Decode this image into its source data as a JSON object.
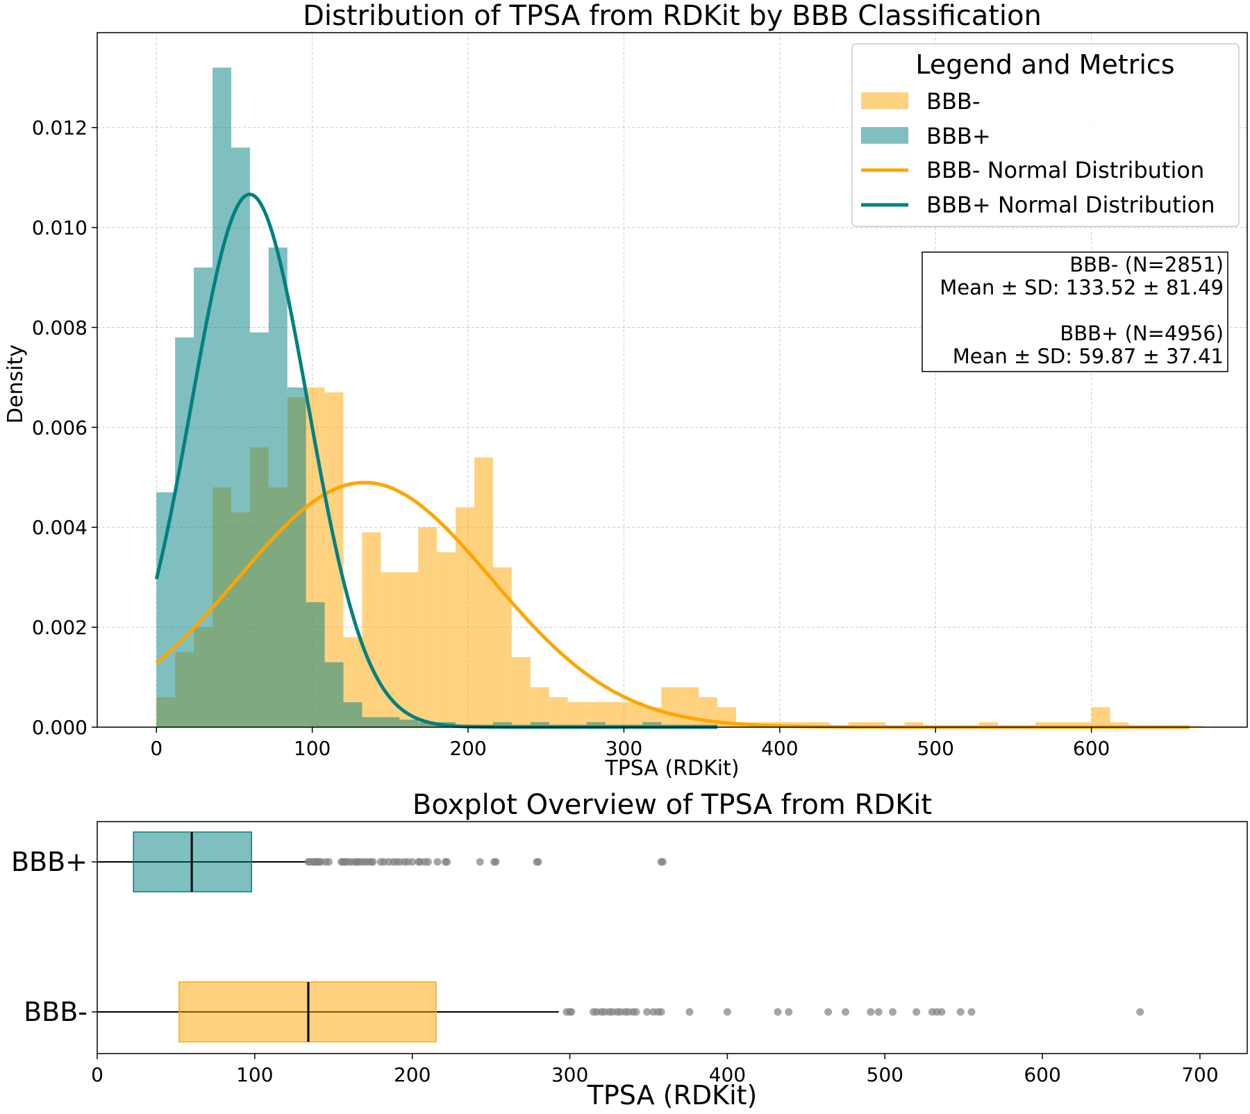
{
  "chart_data": [
    {
      "type": "histogram",
      "title": "Distribution of TPSA from RDKit by BBB Classification",
      "xlabel": "TPSA (RDKit)",
      "ylabel": "Density",
      "xlim": [
        -38,
        700
      ],
      "ylim": [
        0,
        0.0139
      ],
      "xticks": [
        0,
        100,
        200,
        300,
        400,
        500,
        600
      ],
      "yticks": [
        0,
        0.002,
        0.004,
        0.006,
        0.008,
        0.01,
        0.012
      ],
      "ytick_labels": [
        "0.000",
        "0.002",
        "0.004",
        "0.006",
        "0.008",
        "0.010",
        "0.012"
      ],
      "grid": true,
      "legend": {
        "title": "Legend and Metrics",
        "placement": "top-right",
        "entries": [
          {
            "label": "BBB-",
            "kind": "patch",
            "color": "#ffa500"
          },
          {
            "label": "BBB+",
            "kind": "patch",
            "color": "#008080"
          },
          {
            "label": "BBB- Normal Distribution",
            "kind": "line",
            "color": "#ffa500"
          },
          {
            "label": "BBB+ Normal Distribution",
            "kind": "line",
            "color": "#008080"
          }
        ]
      },
      "metrics_box": {
        "lines": [
          "BBB- (N=2851)",
          "Mean ± SD: 133.52 ± 81.49",
          "",
          "BBB+ (N=4956)",
          "Mean ± SD: 59.87 ± 37.41"
        ]
      },
      "series": [
        {
          "name": "BBB-",
          "kind": "histogram",
          "color": "#ffa500",
          "alpha": 0.5,
          "bin_start": 0,
          "bin_width": 12,
          "density": [
            0.0006,
            0.0015,
            0.002,
            0.0048,
            0.0043,
            0.0056,
            0.0048,
            0.0066,
            0.0068,
            0.0067,
            0.0018,
            0.0039,
            0.0031,
            0.0031,
            0.004,
            0.0035,
            0.0044,
            0.0054,
            0.0032,
            0.0014,
            0.0008,
            0.0006,
            0.0005,
            0.0005,
            0.0005,
            0.0005,
            0.0004,
            0.0008,
            0.0008,
            0.0006,
            0.0004,
            0.0001,
            0.0001,
            0.0001,
            0.0001,
            0.0001,
            3e-05,
            0.0001,
            0.0001,
            3e-05,
            0.0001,
            3e-05,
            3e-05,
            3e-05,
            0.0001,
            3e-05,
            3e-05,
            0.0001,
            0.0001,
            0.0001,
            0.0004,
            0.0001,
            3e-05,
            3e-05,
            3e-05,
            3e-05
          ]
        },
        {
          "name": "BBB+",
          "kind": "histogram",
          "color": "#008080",
          "alpha": 0.5,
          "bin_start": 0,
          "bin_width": 12,
          "density": [
            0.0047,
            0.0078,
            0.0092,
            0.0132,
            0.0116,
            0.0079,
            0.0096,
            0.0068,
            0.0025,
            0.0013,
            0.0005,
            0.0002,
            0.0002,
            0.00015,
            0.0001,
            0.0001,
            5e-05,
            5e-05,
            0.0001,
            5e-05,
            0.0001,
            5e-05,
            5e-05,
            0.0001,
            5e-05,
            5e-05,
            0.0001,
            5e-05,
            5e-05,
            5e-05
          ]
        },
        {
          "name": "BBB- Normal Distribution",
          "kind": "normal_curve",
          "color": "#ffa500",
          "mean": 133.52,
          "sd": 81.49,
          "x_range": [
            0,
            663
          ]
        },
        {
          "name": "BBB+ Normal Distribution",
          "kind": "normal_curve",
          "color": "#008080",
          "mean": 59.87,
          "sd": 37.41,
          "x_range": [
            0,
            360
          ]
        }
      ]
    },
    {
      "type": "boxplot",
      "title": "Boxplot Overview of TPSA from RDKit",
      "xlabel": "TPSA (RDKit)",
      "xlim": [
        0,
        730
      ],
      "xticks": [
        0,
        100,
        200,
        300,
        400,
        500,
        600,
        700
      ],
      "categories": [
        "BBB+",
        "BBB-"
      ],
      "boxes": [
        {
          "name": "BBB+",
          "color": "#008080",
          "whisker_low": 0,
          "q1": 23,
          "median": 60,
          "q3": 98,
          "whisker_high": 134,
          "outliers": [
            134,
            135,
            137,
            138,
            139,
            140,
            141,
            142,
            145,
            147,
            155,
            156,
            157,
            158,
            160,
            162,
            164,
            165,
            166,
            168,
            170,
            172,
            174,
            175,
            180,
            182,
            185,
            188,
            190,
            192,
            195,
            197,
            200,
            204,
            205,
            208,
            210,
            216,
            221,
            222,
            243,
            252,
            253,
            279,
            280,
            358,
            359
          ]
        },
        {
          "name": "BBB-",
          "color": "#ffa500",
          "whisker_low": 0,
          "q1": 52,
          "median": 134,
          "q3": 215,
          "whisker_high": 293,
          "outliers": [
            298,
            300,
            301,
            315,
            317,
            320,
            322,
            325,
            327,
            330,
            332,
            335,
            337,
            340,
            342,
            349,
            353,
            356,
            358,
            376,
            400,
            432,
            439,
            464,
            475,
            491,
            496,
            505,
            520,
            530,
            533,
            536,
            548,
            555,
            662
          ]
        }
      ],
      "outlier_color": "#808080"
    }
  ]
}
